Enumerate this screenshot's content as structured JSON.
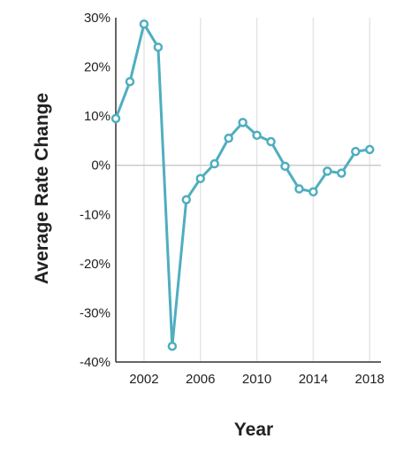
{
  "chart_data": {
    "type": "line",
    "xlabel": "Year",
    "ylabel": "Average Rate Change",
    "x": [
      2000,
      2001,
      2002,
      2003,
      2004,
      2005,
      2006,
      2007,
      2008,
      2009,
      2010,
      2011,
      2012,
      2013,
      2014,
      2015,
      2016,
      2017,
      2018
    ],
    "series": [
      {
        "values": [
          9.5,
          17.0,
          28.7,
          24.0,
          -36.8,
          -7.0,
          -2.7,
          0.3,
          5.5,
          8.7,
          6.1,
          4.8,
          -0.2,
          -4.8,
          -5.4,
          -1.2,
          -1.6,
          2.8,
          3.2
        ],
        "color": "#4FAEBF"
      }
    ],
    "xlim": [
      2000,
      2018.8
    ],
    "ylim": [
      -40,
      30
    ],
    "x_ticks": [
      {
        "value": 2002,
        "label": "2002"
      },
      {
        "value": 2006,
        "label": "2006"
      },
      {
        "value": 2010,
        "label": "2010"
      },
      {
        "value": 2014,
        "label": "2014"
      },
      {
        "value": 2018,
        "label": "2018"
      }
    ],
    "y_ticks": [
      {
        "value": 30,
        "label": "30%"
      },
      {
        "value": 20,
        "label": "20%"
      },
      {
        "value": 10,
        "label": "10%"
      },
      {
        "value": 0,
        "label": "0%"
      },
      {
        "value": -10,
        "label": "-10%"
      },
      {
        "value": -20,
        "label": "-20%"
      },
      {
        "value": -30,
        "label": "-30%"
      },
      {
        "value": -40,
        "label": "-40%"
      }
    ],
    "grid": "vertical",
    "zero_line": true
  }
}
